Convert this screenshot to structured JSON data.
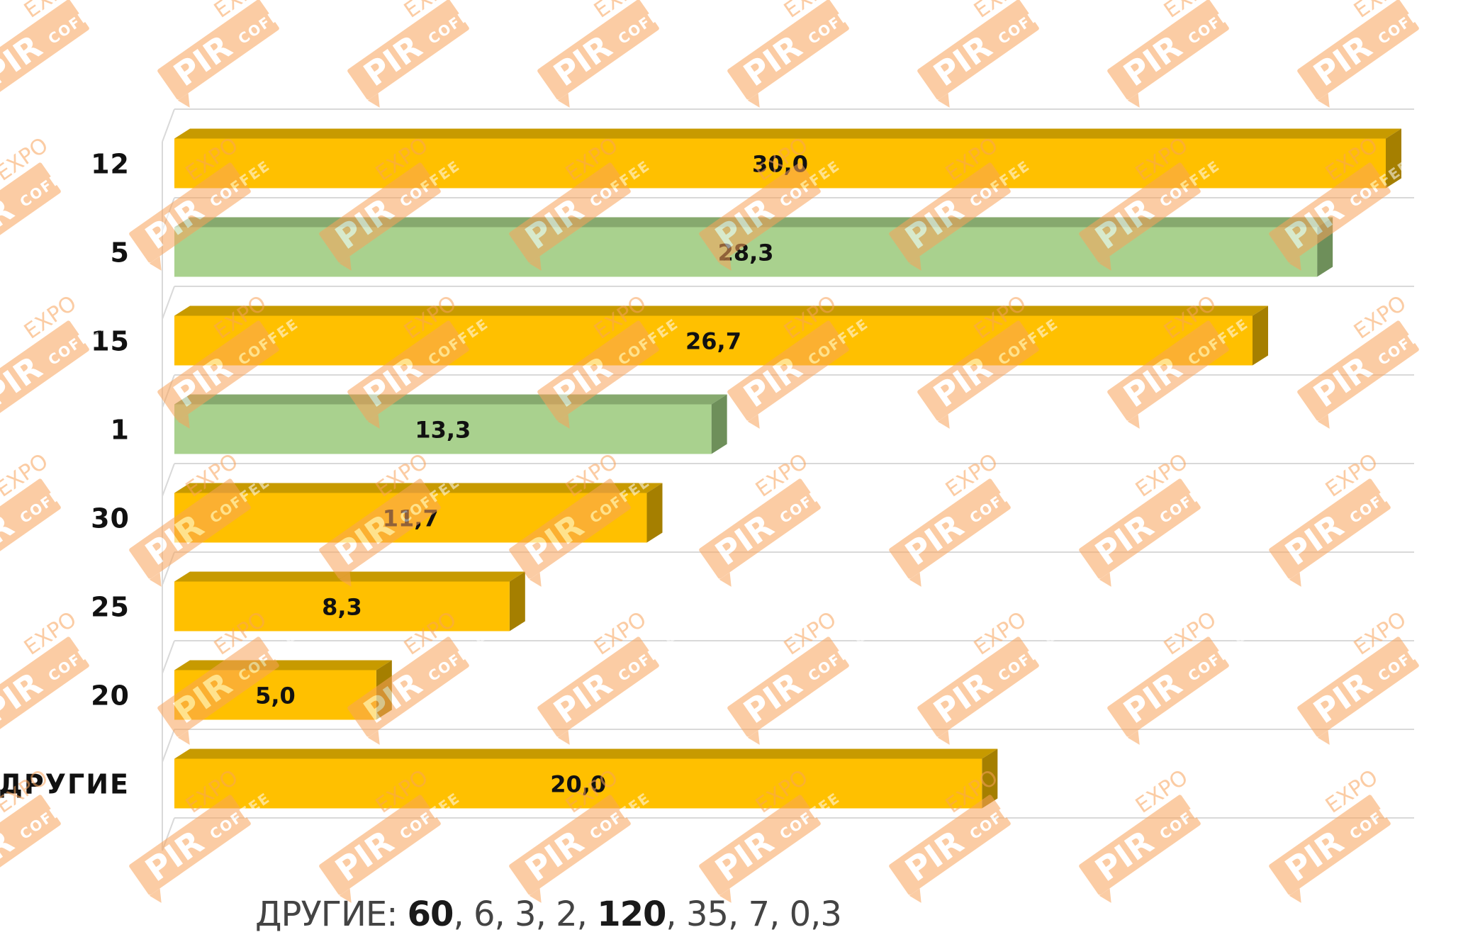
{
  "chart_data": {
    "type": "bar",
    "orientation": "horizontal",
    "categories": [
      "12",
      "5",
      "15",
      "1",
      "30",
      "25",
      "20",
      "ДРУГИЕ"
    ],
    "values": [
      30.0,
      28.3,
      26.7,
      13.3,
      11.7,
      8.3,
      5.0,
      20.0
    ],
    "data_labels": [
      "30,0",
      "28,3",
      "26,7",
      "13,3",
      "11,7",
      "8,3",
      "5,0",
      "20,0"
    ],
    "bar_styles": [
      "gold",
      "green",
      "gold",
      "green",
      "gold",
      "gold",
      "gold",
      "gold"
    ],
    "colors": {
      "gold_front": "#FFC000",
      "gold_top": "#C79A00",
      "gold_side": "#A57F00",
      "green_front": "#A9D18E",
      "green_top": "#86A96E",
      "green_side": "#6E8F5A",
      "grid": "#D9D9D9",
      "watermark": "#F8A35A"
    },
    "xlim": [
      0,
      30
    ],
    "grid": true,
    "legend": "none",
    "three_d": true,
    "title": ""
  },
  "watermark": {
    "line1": "PIR",
    "line2": "EXPO",
    "line3": "COFFEE"
  },
  "footnote": {
    "label": "ДРУГИЕ:",
    "items": [
      {
        "text": "60",
        "bold": true
      },
      {
        "text": "6",
        "bold": false
      },
      {
        "text": "3",
        "bold": false
      },
      {
        "text": "2",
        "bold": false
      },
      {
        "text": "120",
        "bold": true
      },
      {
        "text": "35",
        "bold": false
      },
      {
        "text": "7",
        "bold": false
      },
      {
        "text": "0,3",
        "bold": false
      }
    ]
  }
}
